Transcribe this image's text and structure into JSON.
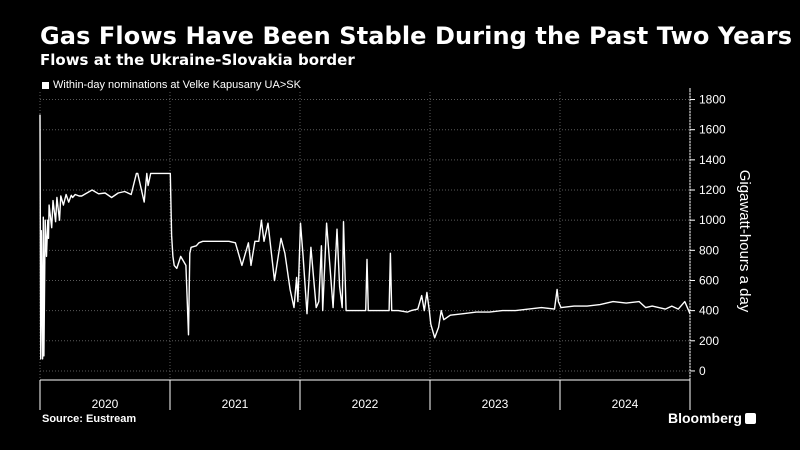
{
  "chart_data": {
    "type": "line",
    "title": "Gas Flows Have Been Stable During the Past Two Years",
    "subtitle": "Flows at the Ukraine-Slovakia border",
    "legend": [
      "Within-day nominations at Velke Kapusany UA>SK"
    ],
    "ylabel": "Gigawatt-hours a day",
    "ylim": [
      -60,
      1850
    ],
    "yticks": [
      0,
      200,
      400,
      600,
      800,
      1000,
      1200,
      1400,
      1600,
      1800
    ],
    "xlim": [
      2020.0,
      2024.99
    ],
    "xcategories": [
      "2020",
      "2021",
      "2022",
      "2023",
      "2024"
    ],
    "grid": true,
    "line_color": "#ffffff",
    "series": [
      {
        "x": [
          2020.0,
          2020.005,
          2020.01,
          2020.02,
          2020.025,
          2020.03,
          2020.04,
          2020.05,
          2020.06,
          2020.065,
          2020.07,
          2020.09,
          2020.1,
          2020.12,
          2020.13,
          2020.15,
          2020.16,
          2020.18,
          2020.2,
          2020.22,
          2020.24,
          2020.25,
          2020.27,
          2020.3,
          2020.32,
          2020.34,
          2020.4,
          2020.45,
          2020.5,
          2020.55,
          2020.6,
          2020.65,
          2020.7,
          2020.74,
          2020.75,
          2020.8,
          2020.82,
          2020.83,
          2020.85,
          2020.9,
          2020.95,
          2021.0,
          2021.01,
          2021.02,
          2021.03,
          2021.05,
          2021.08,
          2021.12,
          2021.14,
          2021.15,
          2021.16,
          2021.2,
          2021.22,
          2021.25,
          2021.3,
          2021.35,
          2021.4,
          2021.45,
          2021.5,
          2021.55,
          2021.6,
          2021.62,
          2021.65,
          2021.68,
          2021.7,
          2021.72,
          2021.75,
          2021.8,
          2021.85,
          2021.88,
          2021.92,
          2021.95,
          2021.97,
          2021.98,
          2022.0,
          2022.02,
          2022.05,
          2022.08,
          2022.12,
          2022.14,
          2022.16,
          2022.17,
          2022.2,
          2022.25,
          2022.28,
          2022.3,
          2022.32,
          2022.33,
          2022.35,
          2022.4,
          2022.5,
          2022.51,
          2022.52,
          2022.6,
          2022.68,
          2022.69,
          2022.7,
          2022.75,
          2022.82,
          2022.85,
          2022.9,
          2022.93,
          2022.95,
          2022.97,
          2022.99,
          2023.0,
          2023.03,
          2023.06,
          2023.08,
          2023.1,
          2023.15,
          2023.25,
          2023.35,
          2023.45,
          2023.55,
          2023.65,
          2023.75,
          2023.85,
          2023.95,
          2023.97,
          2023.98,
          2024.0,
          2024.1,
          2024.2,
          2024.3,
          2024.4,
          2024.5,
          2024.6,
          2024.65,
          2024.7,
          2024.8,
          2024.85,
          2024.9,
          2024.95,
          2024.99
        ],
        "y": [
          1700,
          80,
          930,
          80,
          1020,
          100,
          1000,
          760,
          1000,
          880,
          1100,
          950,
          1130,
          990,
          1150,
          1000,
          1160,
          1100,
          1170,
          1120,
          1165,
          1150,
          1170,
          1160,
          1160,
          1170,
          1200,
          1175,
          1180,
          1150,
          1180,
          1190,
          1170,
          1310,
          1310,
          1120,
          1310,
          1230,
          1310,
          1310,
          1310,
          1310,
          900,
          760,
          700,
          680,
          760,
          700,
          240,
          780,
          820,
          830,
          850,
          860,
          860,
          860,
          860,
          860,
          850,
          700,
          850,
          700,
          860,
          860,
          1000,
          860,
          980,
          600,
          880,
          780,
          540,
          420,
          620,
          460,
          980,
          760,
          380,
          820,
          420,
          460,
          830,
          400,
          980,
          420,
          940,
          560,
          420,
          990,
          400,
          400,
          400,
          740,
          400,
          400,
          400,
          780,
          400,
          400,
          390,
          400,
          410,
          500,
          400,
          520,
          390,
          310,
          220,
          290,
          400,
          340,
          370,
          380,
          390,
          390,
          400,
          400,
          410,
          420,
          410,
          540,
          460,
          420,
          430,
          430,
          440,
          460,
          450,
          460,
          420,
          430,
          410,
          430,
          410,
          460,
          380
        ]
      }
    ]
  },
  "source": "Source: Eustream",
  "brand": "Bloomberg",
  "brand_mark": "®"
}
